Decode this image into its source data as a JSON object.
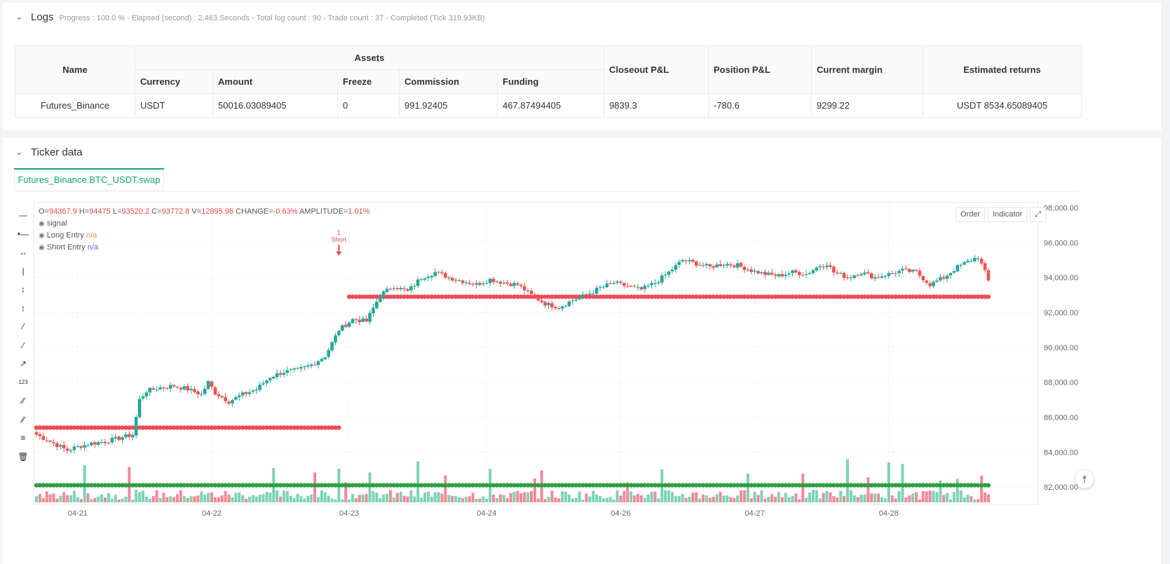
{
  "logs": {
    "title": "Logs",
    "summary": "Progress : 100.0 % - Elapsed (second) : 2.463 Seconds - Total log count : 90 - Trade count : 37 - Completed (Tick 319.93KB)"
  },
  "assets_table": {
    "headers": {
      "name": "Name",
      "assets": "Assets",
      "currency": "Currency",
      "amount": "Amount",
      "freeze": "Freeze",
      "commission": "Commission",
      "funding": "Funding",
      "closeout": "Closeout P&L",
      "position": "Position P&L",
      "margin": "Current margin",
      "returns": "Estimated returns"
    },
    "row": {
      "name": "Futures_Binance",
      "currency": "USDT",
      "amount": "50016.03089405",
      "freeze": "0",
      "commission": "991.92405",
      "funding": "467.87494405",
      "closeout": "9839.3",
      "position": "-780.6",
      "margin": "9299.22",
      "returns": "USDT 8534.65089405"
    }
  },
  "ticker": {
    "title": "Ticker data",
    "tab": "Futures_Binance.BTC_USDT.swap",
    "buttons": {
      "order": "Order",
      "indicator": "Indicator"
    },
    "ohlc": {
      "o_label": "O=",
      "o": "94367.9",
      "h_label": "H=",
      "h": "94475",
      "l_label": "L=",
      "l": "93520.2",
      "c_label": "C=",
      "c": "93772.8",
      "v_label": "V=",
      "v": "12895.96",
      "change_label": "CHANGE=",
      "change": "-0.63%",
      "amp_label": "AMPLITUDE=",
      "amp": "1.01%"
    },
    "legend": {
      "signal": "signal",
      "long": "Long Entry",
      "long_val": "n/a",
      "short": "Short Entry",
      "short_val": "n/a"
    },
    "marker": {
      "count": "1",
      "label": "Short"
    }
  },
  "chart_data": {
    "type": "candlestick",
    "x_ticks": [
      "04-21",
      "04-22",
      "04-23",
      "04-24",
      "04-26",
      "04-27",
      "04-28"
    ],
    "y_ticks": [
      "98,000.00",
      "96,000.00",
      "94,000.00",
      "92,000.00",
      "90,000.00",
      "88,000.00",
      "86,000.00",
      "84,000.00",
      "82,000.00"
    ],
    "ylim": [
      81000,
      98300
    ],
    "colors": {
      "up": "#26a69a",
      "down": "#ef5350",
      "support": "#2e9e3f",
      "resistance": "#f04a55"
    },
    "close_path": [
      [
        0,
        85000
      ],
      [
        3,
        84700
      ],
      [
        6,
        84400
      ],
      [
        9,
        84100
      ],
      [
        12,
        84300
      ],
      [
        16,
        84500
      ],
      [
        20,
        84600
      ],
      [
        24,
        84800
      ],
      [
        28,
        85000
      ],
      [
        30,
        87000
      ],
      [
        32,
        87500
      ],
      [
        36,
        87700
      ],
      [
        40,
        87800
      ],
      [
        44,
        87600
      ],
      [
        48,
        87300
      ],
      [
        50,
        88000
      ],
      [
        52,
        87400
      ],
      [
        56,
        86900
      ],
      [
        60,
        87300
      ],
      [
        64,
        87600
      ],
      [
        68,
        88300
      ],
      [
        72,
        88600
      ],
      [
        76,
        88700
      ],
      [
        80,
        89000
      ],
      [
        84,
        89500
      ],
      [
        88,
        91000
      ],
      [
        92,
        91600
      ],
      [
        96,
        91500
      ],
      [
        100,
        93000
      ],
      [
        104,
        93500
      ],
      [
        108,
        93200
      ],
      [
        112,
        94000
      ],
      [
        116,
        94300
      ],
      [
        120,
        94000
      ],
      [
        124,
        93800
      ],
      [
        128,
        93600
      ],
      [
        132,
        93900
      ],
      [
        136,
        93700
      ],
      [
        140,
        93600
      ],
      [
        144,
        93000
      ],
      [
        148,
        92500
      ],
      [
        152,
        92300
      ],
      [
        156,
        92700
      ],
      [
        160,
        93000
      ],
      [
        164,
        93400
      ],
      [
        168,
        93700
      ],
      [
        172,
        93500
      ],
      [
        176,
        93300
      ],
      [
        180,
        93700
      ],
      [
        184,
        94300
      ],
      [
        188,
        95000
      ],
      [
        192,
        94800
      ],
      [
        196,
        94600
      ],
      [
        200,
        94800
      ],
      [
        204,
        94700
      ],
      [
        208,
        94400
      ],
      [
        212,
        94200
      ],
      [
        216,
        94100
      ],
      [
        220,
        94300
      ],
      [
        224,
        94200
      ],
      [
        228,
        94700
      ],
      [
        230,
        94800
      ],
      [
        232,
        94300
      ],
      [
        236,
        94000
      ],
      [
        240,
        94300
      ],
      [
        244,
        94000
      ],
      [
        248,
        94200
      ],
      [
        252,
        94400
      ],
      [
        256,
        94300
      ],
      [
        260,
        93600
      ],
      [
        264,
        94000
      ],
      [
        268,
        94600
      ],
      [
        272,
        95000
      ],
      [
        274,
        95200
      ],
      [
        276,
        94300
      ],
      [
        277,
        93800
      ]
    ],
    "support_level": 82100,
    "resistance_segments": [
      [
        0,
        88,
        85400
      ],
      [
        91,
        277,
        92900
      ]
    ],
    "short_signal_index": 88
  }
}
